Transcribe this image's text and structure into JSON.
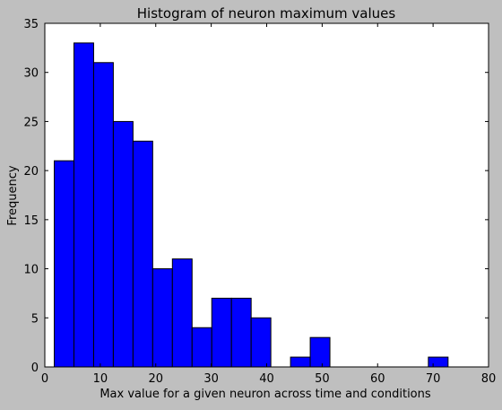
{
  "chart_data": {
    "type": "bar",
    "title": "Histogram of neuron maximum values",
    "xlabel": "Max value for a given neuron across time and conditions",
    "ylabel": "Frequency",
    "xlim": [
      0,
      80
    ],
    "ylim": [
      0,
      35
    ],
    "xticks": [
      0,
      10,
      20,
      30,
      40,
      50,
      60,
      70,
      80
    ],
    "yticks": [
      0,
      5,
      10,
      15,
      20,
      25,
      30,
      35
    ],
    "grid": false,
    "bar_color": "#0000ff",
    "bins": [
      {
        "start": 1.7,
        "end": 5.25,
        "count": 21
      },
      {
        "start": 5.25,
        "end": 8.8,
        "count": 33
      },
      {
        "start": 8.8,
        "end": 12.35,
        "count": 31
      },
      {
        "start": 12.35,
        "end": 15.9,
        "count": 25
      },
      {
        "start": 15.9,
        "end": 19.45,
        "count": 23
      },
      {
        "start": 19.45,
        "end": 23.0,
        "count": 10
      },
      {
        "start": 23.0,
        "end": 26.55,
        "count": 11
      },
      {
        "start": 26.55,
        "end": 30.1,
        "count": 4
      },
      {
        "start": 30.1,
        "end": 33.65,
        "count": 7
      },
      {
        "start": 33.65,
        "end": 37.2,
        "count": 7
      },
      {
        "start": 37.2,
        "end": 40.75,
        "count": 5
      },
      {
        "start": 40.75,
        "end": 44.3,
        "count": 0
      },
      {
        "start": 44.3,
        "end": 47.85,
        "count": 1
      },
      {
        "start": 47.85,
        "end": 51.4,
        "count": 3
      },
      {
        "start": 51.4,
        "end": 54.95,
        "count": 0
      },
      {
        "start": 54.95,
        "end": 58.5,
        "count": 0
      },
      {
        "start": 58.5,
        "end": 62.05,
        "count": 0
      },
      {
        "start": 62.05,
        "end": 65.6,
        "count": 0
      },
      {
        "start": 65.6,
        "end": 69.15,
        "count": 0
      },
      {
        "start": 69.15,
        "end": 72.7,
        "count": 1
      }
    ]
  }
}
